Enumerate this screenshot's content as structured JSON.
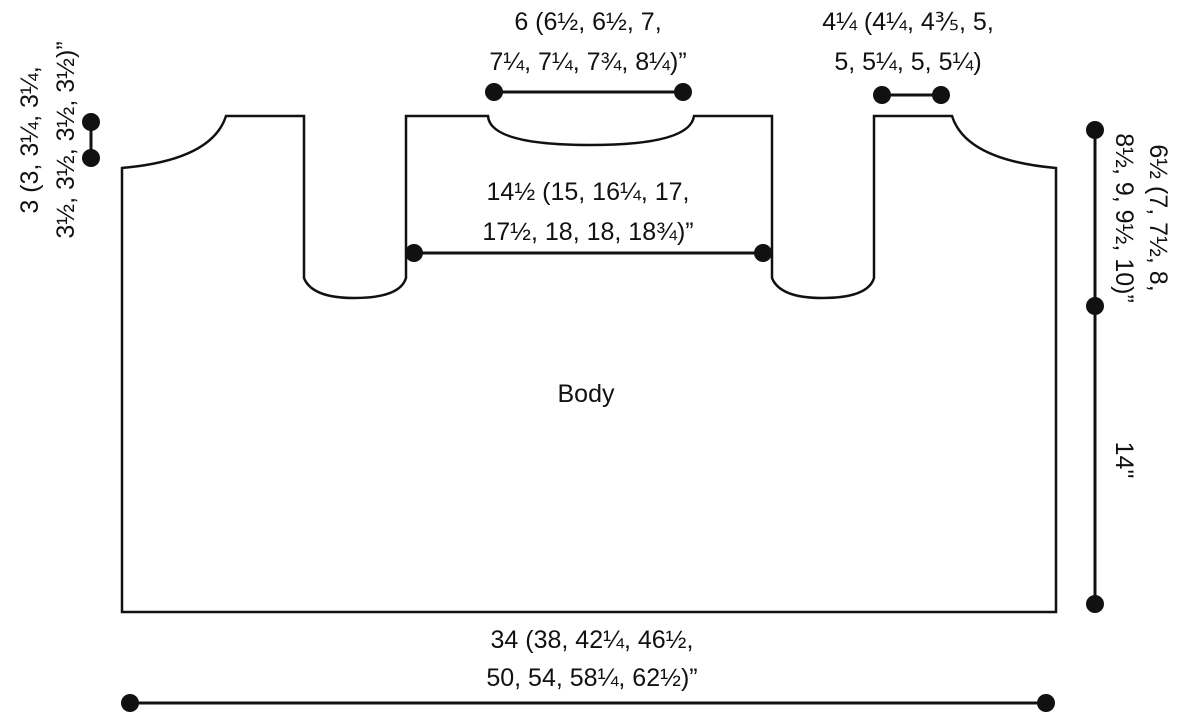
{
  "piece_label": "Body",
  "measurements": {
    "neck_width": {
      "line1": "6 (6½, 6½, 7,",
      "line2": "7¼, 7¼, 7¾, 8¼)”"
    },
    "shoulder_width": {
      "line1": "4¼ (4¼, 4⅗, 5,",
      "line2": "5, 5¼, 5, 5¼)"
    },
    "shoulder_drop": {
      "line1": "3 (3, 3¼, 3¼,",
      "line2": "3½, 3½, 3½, 3½)”"
    },
    "cross_back": {
      "line1": "14½ (15, 16¼, 17,",
      "line2": "17½, 18, 18, 18¾)”"
    },
    "armhole_depth": {
      "line1": "6½ (7, 7½, 8,",
      "line2": "8½, 9, 9½, 10)”"
    },
    "body_length": {
      "line1": "14\""
    },
    "width": {
      "line1": "34 (38, 42¼, 46½,",
      "line2": "50, 54, 58¼, 62½)”"
    }
  },
  "colors": {
    "ink": "#111111",
    "background": "#ffffff"
  }
}
